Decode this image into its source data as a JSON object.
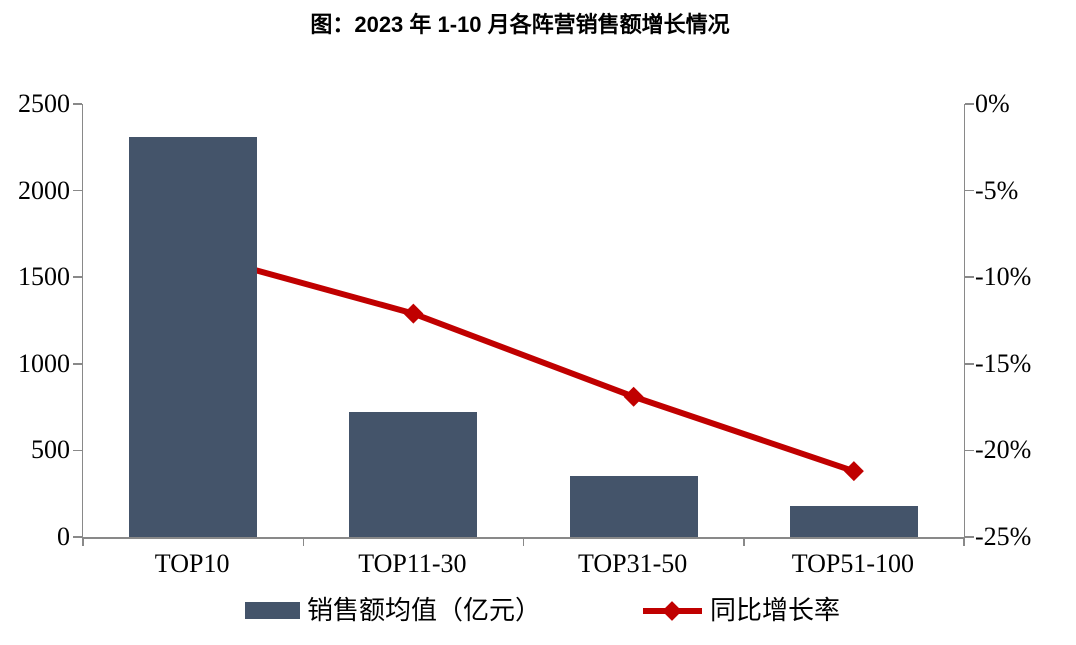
{
  "title": "图：2023 年 1-10 月各阵营销售额增长情况",
  "colors": {
    "bar": "#44546A",
    "line": "#C00000",
    "axis": "#898989",
    "text": "#000000"
  },
  "legend": {
    "bar_label": "销售额均值（亿元）",
    "line_label": "同比增长率"
  },
  "chart_data": {
    "type": "bar",
    "subtype": "bar-line-combo-dual-axis",
    "title": "图：2023 年 1-10 月各阵营销售额增长情况",
    "categories": [
      "TOP10",
      "TOP11-30",
      "TOP31-50",
      "TOP51-100"
    ],
    "series": [
      {
        "name": "销售额均值（亿元）",
        "type": "bar",
        "axis": "left",
        "values": [
          2310,
          720,
          355,
          180
        ]
      },
      {
        "name": "同比增长率",
        "type": "line",
        "axis": "right",
        "values": [
          -8.6,
          -12.1,
          -16.9,
          -21.2
        ]
      }
    ],
    "left_axis": {
      "label": "",
      "min": 0,
      "max": 2500,
      "tick_values": [
        2500,
        2000,
        1500,
        1000,
        500,
        0
      ],
      "tick_labels": [
        "2500",
        "2000",
        "1500",
        "1000",
        "500",
        "0"
      ]
    },
    "right_axis": {
      "label": "",
      "min": -25,
      "max": 0,
      "tick_values": [
        0,
        -5,
        -10,
        -15,
        -20,
        -25
      ],
      "tick_labels": [
        "0%",
        "-5%",
        "-10%",
        "-15%",
        "-20%",
        "-25%"
      ]
    },
    "grid": false,
    "legend_position": "bottom",
    "bar_color": "#44546A",
    "line_color": "#C00000",
    "marker": "diamond"
  }
}
